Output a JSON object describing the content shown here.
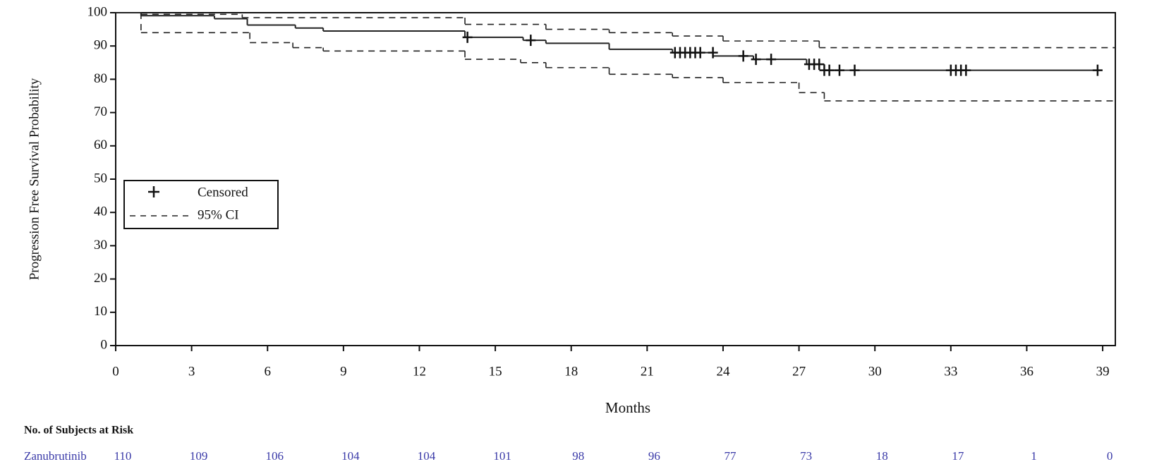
{
  "chart_data": {
    "type": "step",
    "y_label": "Progression Free Survival Probability",
    "x_label": "Months",
    "xlim": [
      0,
      39.5
    ],
    "ylim": [
      0,
      100
    ],
    "xticks": [
      0,
      3,
      6,
      9,
      12,
      15,
      18,
      21,
      24,
      27,
      30,
      33,
      36,
      39
    ],
    "yticks": [
      0,
      10,
      20,
      30,
      40,
      50,
      60,
      70,
      80,
      90,
      100
    ],
    "color": "#222222",
    "km": {
      "x": [
        0,
        1.0,
        3.9,
        5.2,
        7.1,
        8.2,
        13.8,
        16.1,
        17.0,
        19.5,
        22.0,
        23.6,
        25.2,
        27.3,
        28.0
      ],
      "values": [
        100,
        99.1,
        98.2,
        96.3,
        95.4,
        94.5,
        92.6,
        91.7,
        90.8,
        89.0,
        88.0,
        87.0,
        86.0,
        84.5,
        82.7
      ],
      "x_end": 38.8
    },
    "censored": {
      "name": "Censored",
      "x": [
        13.9,
        16.4,
        22.1,
        22.3,
        22.5,
        22.7,
        22.9,
        23.1,
        23.6,
        24.8,
        25.3,
        25.9,
        27.4,
        27.6,
        27.8,
        28.0,
        28.2,
        28.6,
        29.2,
        33.0,
        33.2,
        33.4,
        33.6,
        38.8
      ],
      "values": [
        92.6,
        91.7,
        88.0,
        88.0,
        88.0,
        88.0,
        88.0,
        88.0,
        88.0,
        87.0,
        86.0,
        86.0,
        84.5,
        84.5,
        84.5,
        82.7,
        82.7,
        82.7,
        82.7,
        82.7,
        82.7,
        82.7,
        82.7,
        82.7
      ]
    },
    "ci": {
      "name": "95% CI",
      "upper": {
        "x": [
          0,
          1.0,
          5.0,
          13.8,
          17.0,
          19.5,
          22.0,
          24.0,
          27.8
        ],
        "values": [
          100,
          99.5,
          98.5,
          96.5,
          95.0,
          94.0,
          93.0,
          91.5,
          89.5
        ]
      },
      "lower": {
        "x": [
          0,
          1.0,
          5.3,
          7.0,
          8.2,
          13.8,
          16.0,
          17.0,
          19.5,
          22.0,
          24.0,
          27.0,
          28.0
        ],
        "values": [
          100,
          94.0,
          91.0,
          89.5,
          88.5,
          86.0,
          85.0,
          83.5,
          81.5,
          80.5,
          79.0,
          76.0,
          73.5
        ]
      }
    },
    "risk_table": {
      "title": "No. of Subjects at Risk",
      "label": "Zanubrutinib",
      "values": [
        110,
        109,
        106,
        104,
        104,
        101,
        98,
        96,
        77,
        73,
        18,
        17,
        1,
        0
      ]
    }
  }
}
